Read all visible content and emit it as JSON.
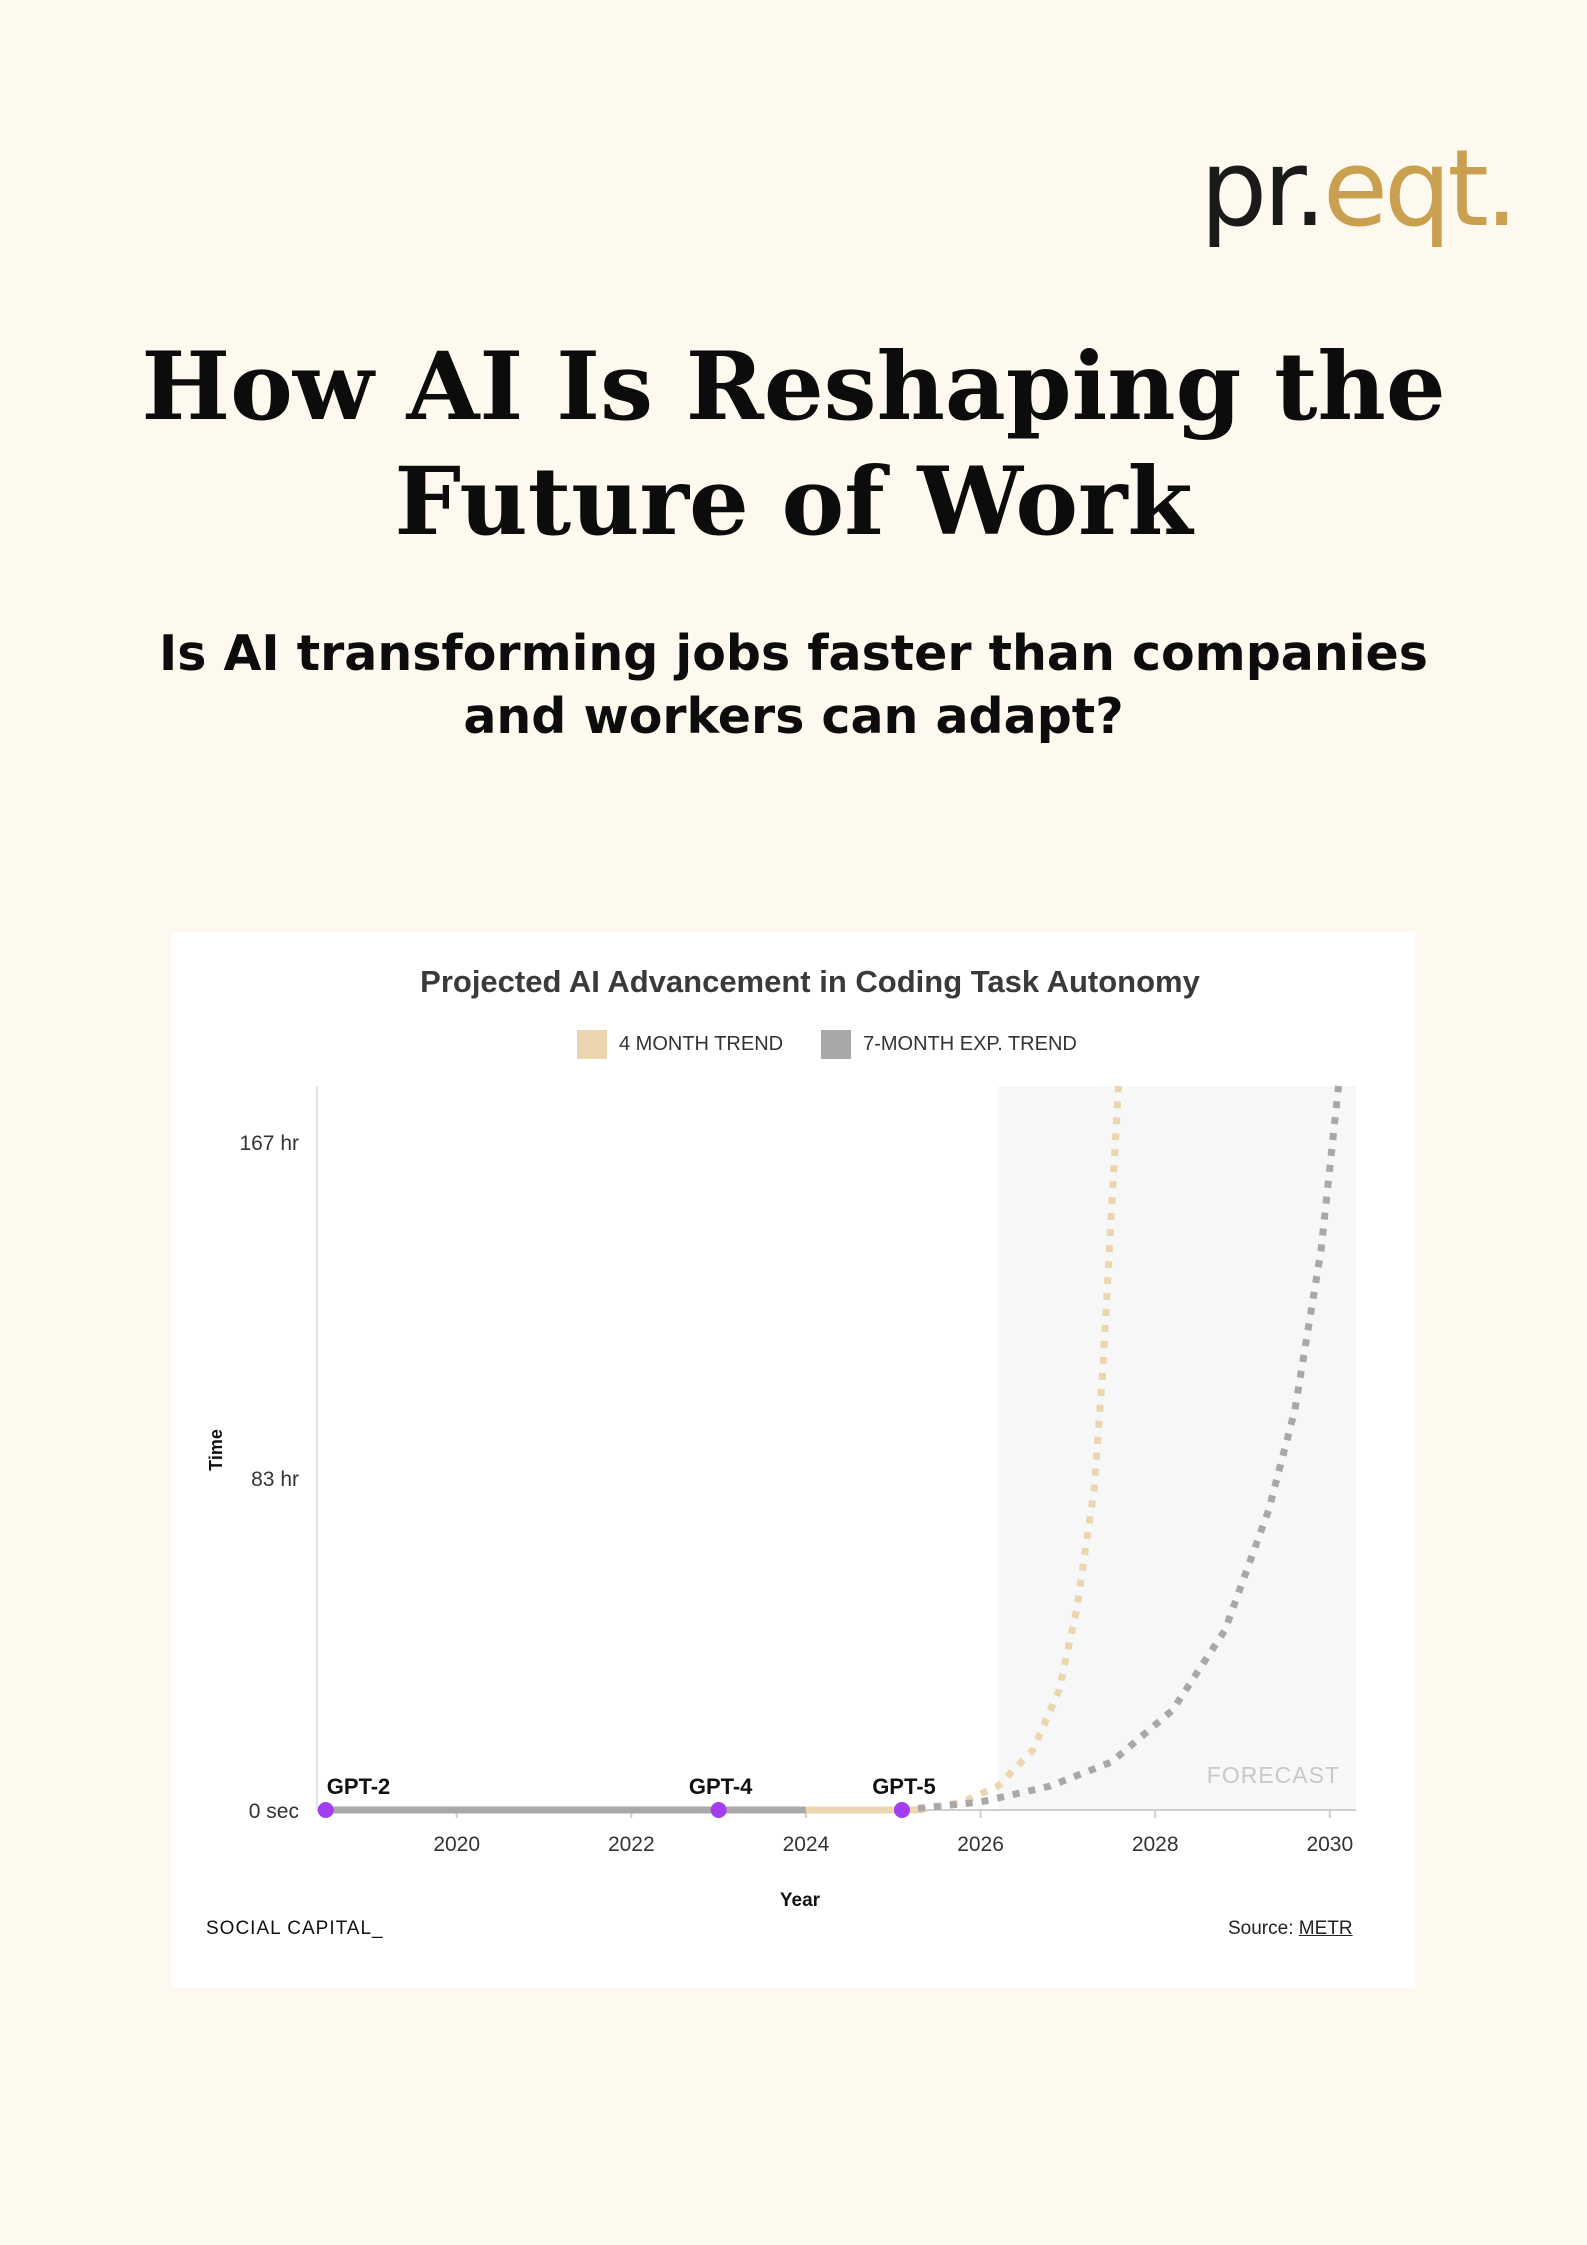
{
  "logo": {
    "part1": "pr.",
    "part2": "eqt."
  },
  "header": {
    "title": "How AI Is Reshaping the Future of Work",
    "subtitle": "Is AI transforming jobs faster than companies and workers can adapt?"
  },
  "colors": {
    "background": "#fdf9ee",
    "trend4": "#ecd6b0",
    "trend7": "#a8a8a8",
    "marker": "#a23ef0",
    "logo_gold": "#c9a050"
  },
  "footer": {
    "brand": "SOCIAL CAPITAL_",
    "source_prefix": "Source: ",
    "source_link": "METR"
  },
  "chart_data": {
    "type": "line",
    "title": "Projected AI Advancement in Coding Task Autonomy",
    "xlabel": "Year",
    "ylabel": "Time",
    "xlim": [
      2018.4,
      2030.3
    ],
    "ylim": [
      0,
      181
    ],
    "x_ticks": [
      2020,
      2022,
      2024,
      2026,
      2028,
      2030
    ],
    "y_ticks": [
      {
        "value": 0,
        "label": "0 sec"
      },
      {
        "value": 83,
        "label": "83 hr"
      },
      {
        "value": 167,
        "label": "167 hr"
      }
    ],
    "legend": [
      "4 MONTH TREND",
      "7-MONTH EXP. TREND"
    ],
    "legend_position": "top",
    "forecast_region": {
      "label": "FORECAST",
      "start": 2026.2
    },
    "series": [
      {
        "name": "4 MONTH TREND",
        "color": "#ecd6b0",
        "style": "solid",
        "x": [
          2024.0,
          2025.3
        ],
        "y": [
          0,
          0
        ]
      },
      {
        "name": "4 MONTH TREND",
        "color": "#ecd6b0",
        "style": "dotted",
        "x": [
          2025.3,
          2025.8,
          2026.2,
          2026.6,
          2026.9,
          2027.1,
          2027.3,
          2027.4,
          2027.5,
          2027.58
        ],
        "y": [
          0,
          2,
          6,
          15,
          30,
          50,
          80,
          110,
          150,
          181
        ]
      },
      {
        "name": "7-MONTH EXP. TREND",
        "color": "#a8a8a8",
        "style": "solid",
        "x": [
          2018.5,
          2024.0
        ],
        "y": [
          0,
          0
        ]
      },
      {
        "name": "7-MONTH EXP. TREND",
        "color": "#a8a8a8",
        "style": "dotted",
        "x": [
          2025.1,
          2026.0,
          2026.8,
          2027.5,
          2028.2,
          2028.8,
          2029.3,
          2029.6,
          2029.9,
          2030.1
        ],
        "y": [
          0,
          2,
          6,
          12,
          25,
          45,
          75,
          100,
          140,
          181
        ]
      }
    ],
    "annotations": [
      {
        "label": "GPT-2",
        "x": 2018.5,
        "y": 0
      },
      {
        "label": "GPT-4",
        "x": 2023.0,
        "y": 0
      },
      {
        "label": "GPT-5",
        "x": 2025.1,
        "y": 0
      }
    ]
  }
}
